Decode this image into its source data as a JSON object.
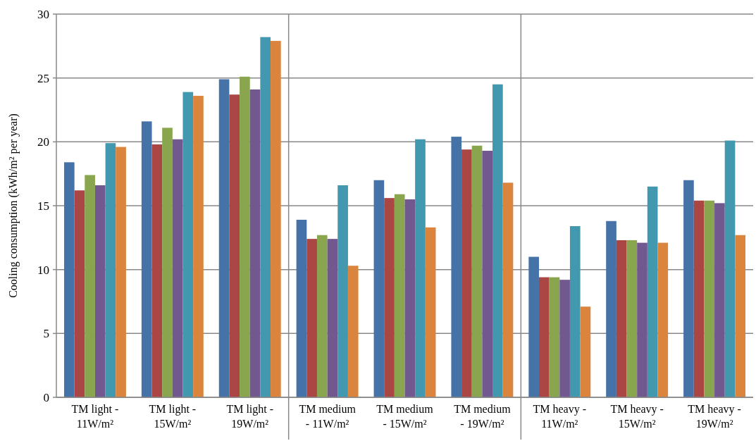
{
  "chart_data": {
    "type": "bar",
    "ylabel": "Cooling consumption (kWh/m² per year)",
    "categories": [
      "TM light - 11W/m²",
      "TM light - 15W/m²",
      "TM light - 19W/m²",
      "TM medium - 11W/m²",
      "TM medium - 15W/m²",
      "TM medium - 19W/m²",
      "TM heavy - 11W/m²",
      "TM heavy - 15W/m²",
      "TM heavy - 19W/m²"
    ],
    "series": [
      {
        "color": "#4572a7",
        "values": [
          18.4,
          21.6,
          24.9,
          13.9,
          17.0,
          20.4,
          11.0,
          13.8,
          17.0
        ]
      },
      {
        "color": "#aa4643",
        "values": [
          16.2,
          19.8,
          23.7,
          12.4,
          15.6,
          19.4,
          9.4,
          12.3,
          15.4
        ]
      },
      {
        "color": "#89a54e",
        "values": [
          17.4,
          21.1,
          25.1,
          12.7,
          15.9,
          19.7,
          9.4,
          12.3,
          15.4
        ]
      },
      {
        "color": "#71588f",
        "values": [
          16.6,
          20.2,
          24.1,
          12.4,
          15.5,
          19.3,
          9.2,
          12.1,
          15.2
        ]
      },
      {
        "color": "#4198af",
        "values": [
          19.9,
          23.9,
          28.2,
          16.6,
          20.2,
          24.5,
          13.4,
          16.5,
          20.1
        ]
      },
      {
        "color": "#db843d",
        "values": [
          19.6,
          23.6,
          27.9,
          10.3,
          13.3,
          16.8,
          7.1,
          12.1,
          12.7
        ]
      }
    ],
    "ylim": [
      0,
      30
    ],
    "yticks": [
      0,
      5,
      10,
      15,
      20,
      25,
      30
    ],
    "grid": "y"
  }
}
